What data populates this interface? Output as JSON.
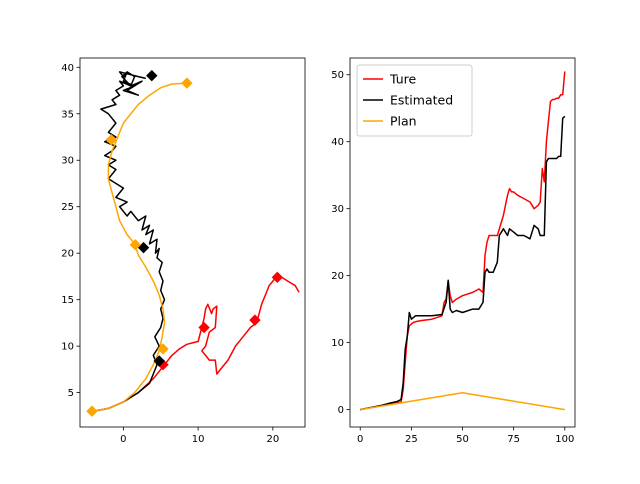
{
  "chart_data": [
    {
      "type": "line",
      "title": "",
      "xlabel": "",
      "ylabel": "",
      "xlim": [
        -5.8,
        24.3
      ],
      "ylim": [
        1.3,
        41.0
      ],
      "xticks": [
        0,
        10,
        20
      ],
      "yticks": [
        5,
        10,
        15,
        20,
        25,
        30,
        35,
        40
      ],
      "xtick_labels": [
        "0",
        "10",
        "20"
      ],
      "ytick_labels": [
        "5",
        "10",
        "15",
        "20",
        "25",
        "30",
        "35",
        "40"
      ],
      "grid": false,
      "series": [
        {
          "color": "#ff0000",
          "x": [
            -4.0,
            -2.0,
            0.0,
            2.0,
            4.0,
            5.5,
            6.5,
            7.5,
            8.5,
            9.5,
            10.0,
            10.5,
            10.8,
            11.0,
            11.3,
            11.8,
            12.0,
            12.5,
            12.3,
            11.5,
            11.0,
            10.5,
            11.0,
            11.5,
            12.3,
            12.5,
            13.0,
            14.0,
            15.0,
            16.0,
            17.0,
            17.8,
            18.0,
            18.5,
            19.0,
            19.5,
            20.0,
            20.5,
            21.0,
            22.0,
            23.0,
            23.5
          ],
          "y": [
            3.0,
            3.3,
            4.0,
            5.0,
            6.5,
            8.0,
            9.0,
            9.7,
            10.2,
            10.4,
            10.5,
            12.0,
            13.0,
            14.0,
            14.5,
            13.5,
            14.0,
            14.3,
            12.0,
            11.5,
            10.0,
            9.5,
            9.0,
            8.5,
            8.5,
            7.0,
            7.5,
            8.5,
            10.0,
            11.0,
            12.0,
            12.5,
            13.0,
            14.5,
            15.5,
            16.5,
            17.0,
            17.5,
            17.5,
            17.0,
            16.5,
            15.8
          ]
        },
        {
          "color": "#000000",
          "x": [
            -4.0,
            -2.0,
            0.0,
            2.0,
            3.5,
            4.0,
            4.5,
            4.0,
            4.8,
            4.2,
            5.0,
            5.3,
            5.0,
            5.5,
            5.0,
            5.3,
            4.8,
            5.2,
            4.5,
            4.8,
            4.3,
            4.5,
            3.5,
            4.0,
            3.0,
            3.5,
            2.5,
            3.0,
            2.0,
            1.0,
            0.5,
            -0.5,
            0.5,
            -1.0,
            0.0,
            -2.0,
            -1.0,
            -2.0,
            -1.0,
            -2.5,
            -1.5,
            -1.0,
            -2.5,
            -1.0,
            -2.0,
            -1.0,
            -2.0,
            -3.0,
            -1.0,
            -1.5,
            -0.5,
            -1.0,
            0.0,
            -0.5,
            1.0,
            -0.2,
            0.5,
            0.0,
            1.5,
            0.0,
            2.0,
            0.5,
            2.5,
            1.0,
            1.5,
            0.5,
            0.0,
            -0.5,
            2.0,
            3.0
          ],
          "y": [
            3.0,
            3.3,
            4.0,
            5.0,
            6.0,
            7.0,
            8.0,
            9.0,
            10.0,
            11.0,
            12.0,
            13.0,
            14.0,
            15.0,
            16.0,
            17.0,
            18.0,
            19.0,
            19.5,
            20.5,
            20.0,
            21.5,
            21.0,
            22.5,
            22.0,
            23.0,
            22.5,
            24.0,
            23.5,
            24.5,
            24.0,
            25.0,
            25.5,
            26.0,
            27.0,
            28.0,
            29.0,
            29.5,
            30.0,
            30.5,
            31.0,
            31.5,
            32.0,
            32.5,
            33.0,
            34.0,
            35.0,
            35.5,
            36.0,
            36.5,
            37.0,
            37.5,
            38.0,
            38.5,
            38.0,
            39.0,
            39.5,
            38.5,
            38.0,
            37.5,
            37.0,
            37.5,
            38.5,
            38.0,
            39.0,
            39.5,
            39.0,
            39.5,
            39.0,
            38.8
          ]
        },
        {
          "color": "#ffa500",
          "x": [
            -4.2,
            -2.0,
            0.0,
            1.5,
            3.0,
            4.0,
            4.8,
            5.2,
            5.5,
            5.3,
            4.8,
            4.0,
            3.0,
            2.0,
            1.5,
            0.5,
            -0.5,
            -1.0,
            -1.5,
            -2.0,
            -2.0,
            -1.5,
            -1.0,
            -0.5,
            0.0,
            1.0,
            2.0,
            3.5,
            5.0,
            6.5,
            8.5
          ],
          "y": [
            3.0,
            3.3,
            4.0,
            5.0,
            6.5,
            8.0,
            9.5,
            11.0,
            12.5,
            14.0,
            15.5,
            17.0,
            18.5,
            19.8,
            21.0,
            22.0,
            23.5,
            25.0,
            26.5,
            28.0,
            29.5,
            31.0,
            32.0,
            33.0,
            34.0,
            35.0,
            36.0,
            37.0,
            37.8,
            38.2,
            38.3
          ]
        }
      ],
      "markers": [
        {
          "color": "#ff0000",
          "x": [
            5.3,
            10.8,
            17.6,
            20.6
          ],
          "y": [
            8.0,
            12.0,
            12.8,
            17.4
          ]
        },
        {
          "color": "#000000",
          "x": [
            4.8,
            2.7,
            3.8
          ],
          "y": [
            8.4,
            20.6,
            39.1
          ]
        },
        {
          "color": "#ffa500",
          "x": [
            -4.2,
            5.3,
            1.6,
            -1.6,
            8.5
          ],
          "y": [
            3.0,
            9.7,
            20.9,
            32.2,
            38.3
          ]
        }
      ]
    },
    {
      "type": "line",
      "title": "",
      "xlabel": "",
      "ylabel": "",
      "xlim": [
        -5,
        105
      ],
      "ylim": [
        -2.6,
        52.5
      ],
      "xticks": [
        0,
        25,
        50,
        75,
        100
      ],
      "yticks": [
        0,
        10,
        20,
        30,
        40,
        50
      ],
      "xtick_labels": [
        "0",
        "25",
        "50",
        "75",
        "100"
      ],
      "ytick_labels": [
        "0",
        "10",
        "20",
        "30",
        "40",
        "50"
      ],
      "grid": false,
      "legend_position": "top-left",
      "series": [
        {
          "name": "Ture",
          "color": "#ff0000",
          "x": [
            0,
            5,
            10,
            15,
            18,
            20,
            21,
            22,
            23,
            24,
            25,
            26,
            28,
            30,
            35,
            40,
            41,
            42,
            43,
            44,
            45,
            47,
            50,
            55,
            58,
            60,
            61,
            62,
            63,
            65,
            67,
            69,
            70,
            72,
            73,
            74,
            75,
            77,
            80,
            83,
            85,
            87,
            88,
            89,
            90,
            91,
            92,
            93,
            94,
            95,
            96,
            97,
            98,
            99,
            100
          ],
          "y": [
            0,
            0.3,
            0.6,
            0.9,
            1.0,
            1.2,
            3,
            7,
            11,
            12.5,
            12.8,
            13,
            13.2,
            13.3,
            13.5,
            14,
            16,
            16.5,
            19.2,
            17,
            16,
            16.5,
            17,
            17.5,
            18,
            17.5,
            23,
            25,
            26,
            26,
            26,
            28,
            29,
            32,
            33,
            32.5,
            32.5,
            32,
            31.5,
            31,
            30,
            30.5,
            31,
            36,
            34,
            40,
            43,
            46,
            46.3,
            46.3,
            46.5,
            46.5,
            47,
            47,
            50.5
          ]
        },
        {
          "name": "Estimated",
          "color": "#000000",
          "x": [
            0,
            5,
            10,
            15,
            18,
            20,
            21,
            22,
            23,
            24,
            25,
            27,
            30,
            35,
            40,
            42,
            43,
            44,
            45,
            47,
            50,
            55,
            58,
            60,
            61,
            62,
            63,
            65,
            67,
            68,
            70,
            72,
            73,
            75,
            77,
            80,
            83,
            85,
            87,
            88,
            89,
            90,
            91,
            92,
            93,
            94,
            95,
            96,
            97,
            98,
            99,
            100
          ],
          "y": [
            0,
            0.3,
            0.6,
            1.0,
            1.2,
            1.5,
            4,
            9,
            11,
            14.5,
            13.5,
            14,
            14,
            14,
            14.2,
            16,
            19.3,
            15,
            14.5,
            14.8,
            14.5,
            15,
            15,
            16,
            20.5,
            21,
            20.5,
            20.5,
            22,
            26,
            27,
            26,
            27,
            26.5,
            26,
            26,
            25.5,
            27.5,
            27,
            26,
            26,
            26,
            37,
            37.5,
            37.5,
            37.5,
            37.5,
            37.5,
            37.8,
            37.8,
            43.5,
            43.8
          ]
        },
        {
          "name": "Plan",
          "color": "#ffa500",
          "x": [
            0,
            50,
            100
          ],
          "y": [
            0,
            2.5,
            0
          ]
        }
      ]
    }
  ]
}
